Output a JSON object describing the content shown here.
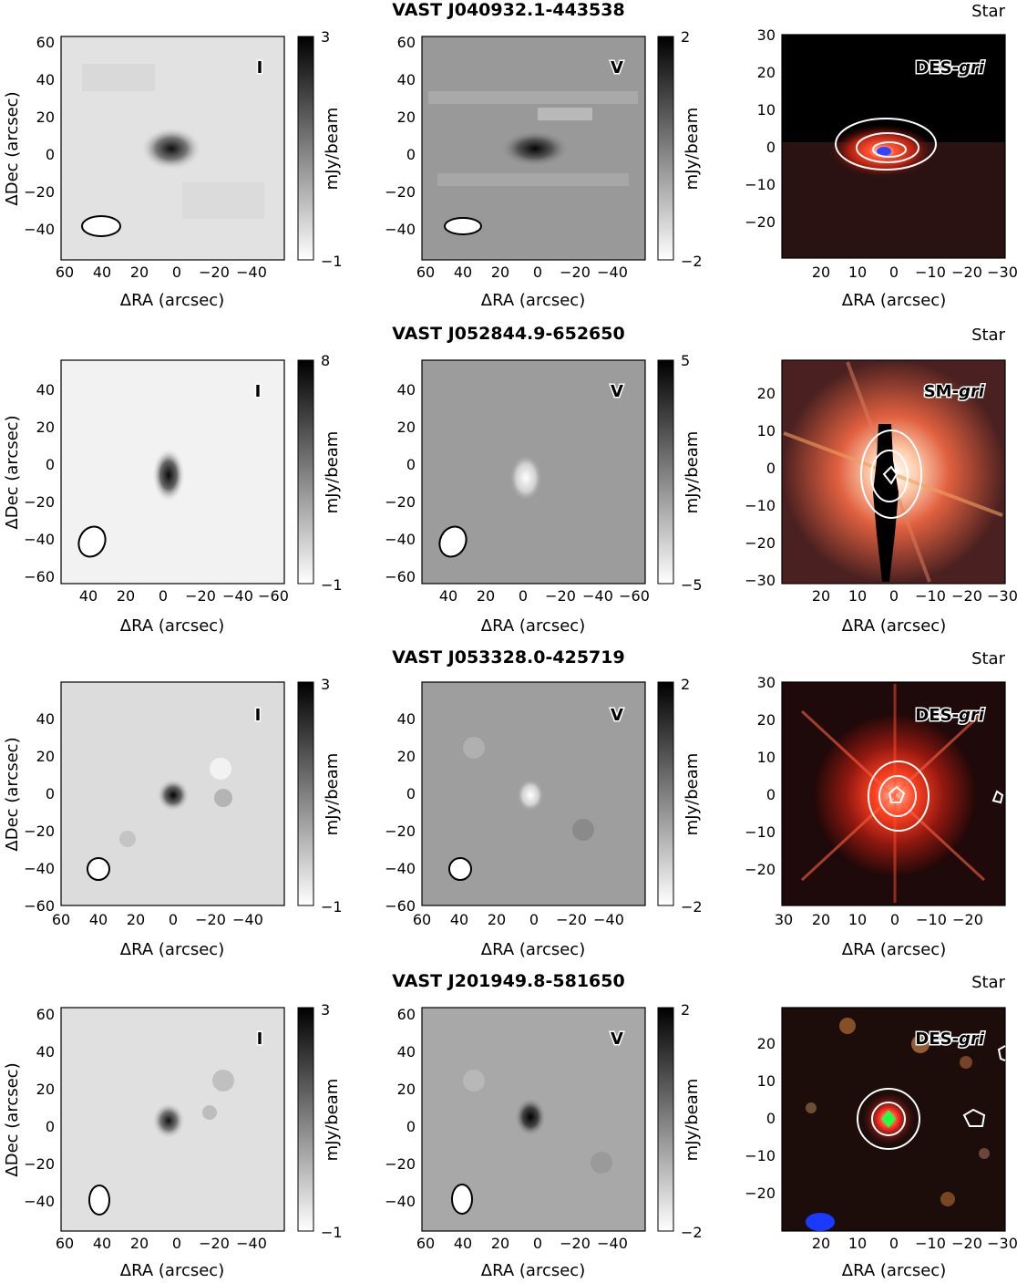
{
  "figure": {
    "xlabel": "ΔRA (arcsec)",
    "ylabel": "ΔDec (arcsec)",
    "cbar_label": "mJy/beam",
    "stokes_i_tag": "I",
    "stokes_v_tag": "V",
    "rows": [
      {
        "title": "VAST J040932.1-443538",
        "class": "Star",
        "radio_xticks": [
          "60",
          "40",
          "20",
          "0",
          "−20",
          "−40"
        ],
        "radio_yticks": [
          "60",
          "40",
          "20",
          "0",
          "−20",
          "−40"
        ],
        "i_cbar": {
          "max": "3",
          "min": "−1",
          "peak": 0.95
        },
        "v_cbar": {
          "max": "2",
          "min": "−2",
          "peak": 0.95
        },
        "v_sign": "positive",
        "optical": {
          "survey_prefix": "DES-",
          "survey_band": "gri",
          "xticks": [
            "20",
            "10",
            "0",
            "−10",
            "−20",
            "−30"
          ],
          "yticks": [
            "30",
            "20",
            "10",
            "0",
            "−10",
            "−20"
          ]
        }
      },
      {
        "title": "VAST J052844.9-652650",
        "class": "Star",
        "radio_xticks": [
          "40",
          "20",
          "0",
          "−20",
          "−40",
          "−60"
        ],
        "radio_yticks": [
          "40",
          "20",
          "0",
          "−20",
          "−40",
          "−60"
        ],
        "i_cbar": {
          "max": "8",
          "min": "−1",
          "peak": 0.95
        },
        "v_cbar": {
          "max": "5",
          "min": "−5",
          "peak": 0.9
        },
        "v_sign": "negative",
        "optical": {
          "survey_prefix": "SM-",
          "survey_band": "gri",
          "xticks": [
            "20",
            "10",
            "0",
            "−10",
            "−20",
            "−30"
          ],
          "yticks": [
            "20",
            "10",
            "0",
            "−10",
            "−20",
            "−30"
          ]
        }
      },
      {
        "title": "VAST J053328.0-425719",
        "class": "Star",
        "radio_xticks": [
          "60",
          "40",
          "20",
          "0",
          "−20",
          "−40"
        ],
        "radio_yticks": [
          "40",
          "20",
          "0",
          "−20",
          "−40",
          "−60"
        ],
        "i_cbar": {
          "max": "3",
          "min": "−1",
          "peak": 0.95
        },
        "v_cbar": {
          "max": "2",
          "min": "−2",
          "peak": 0.85
        },
        "v_sign": "negative",
        "optical": {
          "survey_prefix": "DES-",
          "survey_band": "gri",
          "xticks": [
            "30",
            "20",
            "10",
            "0",
            "−10",
            "−20"
          ],
          "yticks": [
            "30",
            "20",
            "10",
            "0",
            "−10",
            "−20"
          ]
        }
      },
      {
        "title": "VAST J201949.8-581650",
        "class": "Star",
        "radio_xticks": [
          "60",
          "40",
          "20",
          "0",
          "−20",
          "−40"
        ],
        "radio_yticks": [
          "60",
          "40",
          "20",
          "0",
          "−20",
          "−40"
        ],
        "i_cbar": {
          "max": "3",
          "min": "−1",
          "peak": 0.95
        },
        "v_cbar": {
          "max": "2",
          "min": "−2",
          "peak": 0.95
        },
        "v_sign": "positive",
        "optical": {
          "survey_prefix": "DES-",
          "survey_band": "gri",
          "xticks": [
            "20",
            "10",
            "0",
            "−10",
            "−20",
            "−30"
          ],
          "yticks": [
            "20",
            "10",
            "0",
            "−10",
            "−20"
          ]
        }
      }
    ]
  }
}
